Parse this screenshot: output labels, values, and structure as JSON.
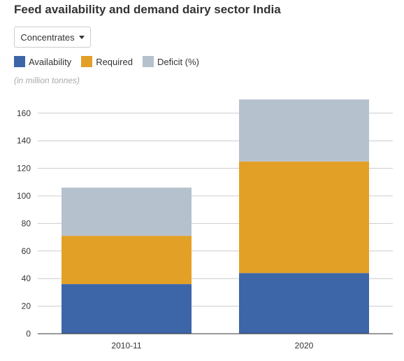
{
  "title": "Feed availability and demand dairy sector India",
  "dropdown": {
    "selected": "Concentrates"
  },
  "unit_note": "(in million tonnes)",
  "colors": {
    "availability": "#3c66a8",
    "required": "#e3a027",
    "deficit": "#b5c1cd",
    "grid": "#cccccc",
    "axis": "#333333"
  },
  "chart_data": {
    "type": "bar",
    "stacked": true,
    "categories": [
      "2010-11",
      "2020"
    ],
    "series": [
      {
        "name": "Availability",
        "values": [
          36,
          44
        ]
      },
      {
        "name": "Required",
        "values": [
          35,
          81
        ]
      },
      {
        "name": "Deficit (%)",
        "values": [
          35,
          45
        ]
      }
    ],
    "yticks": [
      0,
      20,
      40,
      60,
      80,
      100,
      120,
      140,
      160
    ],
    "ylim": [
      0,
      170
    ],
    "grid": true,
    "legend_position": "top-left"
  }
}
